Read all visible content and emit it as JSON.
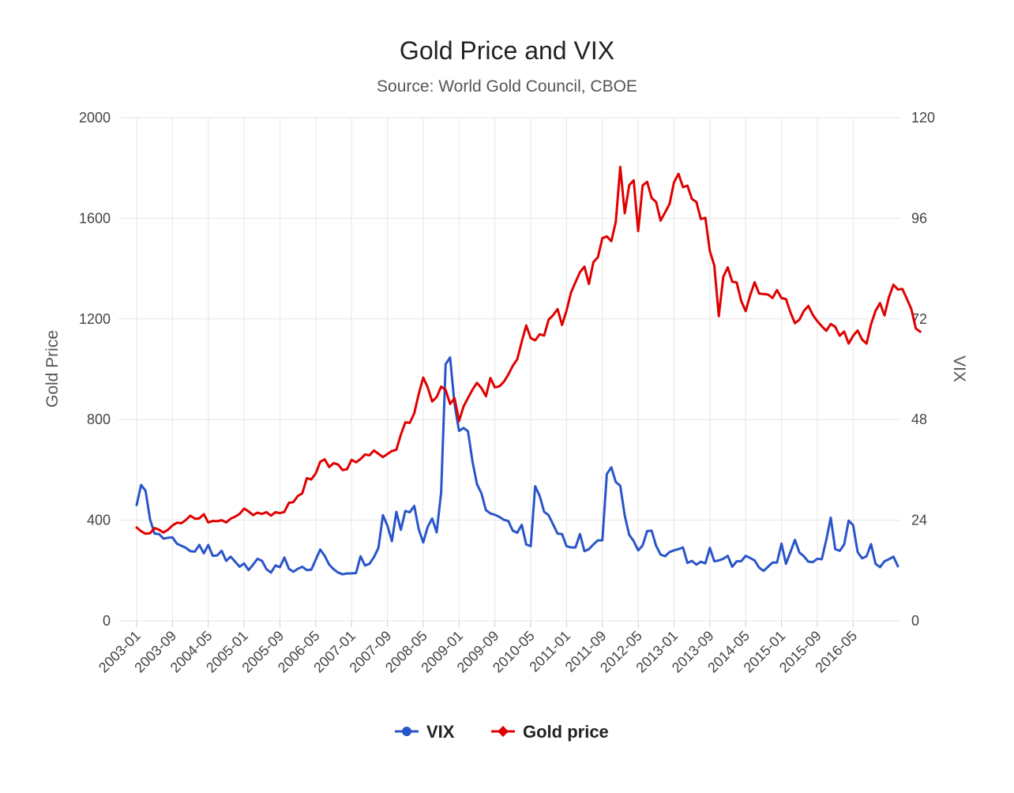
{
  "chart_data": {
    "type": "line",
    "title": "Gold Price and VIX",
    "subtitle": "Source: World Gold Council, CBOE",
    "ylabel": "Gold Price",
    "y2label": "VIX",
    "ylim": [
      0,
      2000
    ],
    "y2lim": [
      0,
      120
    ],
    "yticks": [
      "0",
      "400",
      "800",
      "1200",
      "1600",
      "2000"
    ],
    "y2ticks": [
      "0",
      "24",
      "48",
      "72",
      "96",
      "120"
    ],
    "x_tick_labels": [
      "2003-01",
      "2003-09",
      "2004-05",
      "2005-01",
      "2005-09",
      "2006-05",
      "2007-01",
      "2007-09",
      "2008-05",
      "2009-01",
      "2009-09",
      "2010-05",
      "2011-01",
      "2011-09",
      "2012-05",
      "2013-01",
      "2013-09",
      "2014-05",
      "2015-01",
      "2015-09",
      "2016-05"
    ],
    "x_start": "2003-01",
    "x_end": "2016-12",
    "grid": true,
    "legend_position": "bottom",
    "series": [
      {
        "name": "VIX",
        "axis": "right",
        "color": "#2a55c9",
        "marker": "circle",
        "values": [
          27.6,
          32.4,
          31.0,
          24.2,
          20.8,
          20.7,
          19.6,
          19.8,
          19.9,
          18.4,
          17.9,
          17.4,
          16.6,
          16.5,
          18.1,
          16.1,
          18.1,
          15.5,
          15.6,
          16.7,
          14.3,
          15.3,
          14.1,
          12.9,
          13.7,
          12.1,
          13.4,
          14.8,
          14.3,
          12.3,
          11.5,
          13.2,
          12.8,
          15.1,
          12.4,
          11.7,
          12.4,
          12.9,
          12.1,
          12.2,
          14.6,
          17.0,
          15.5,
          13.4,
          12.3,
          11.5,
          11.1,
          11.3,
          11.3,
          11.4,
          15.4,
          13.2,
          13.6,
          15.2,
          17.4,
          25.2,
          22.7,
          19.0,
          26.0,
          21.7,
          26.2,
          25.9,
          27.4,
          21.8,
          18.7,
          22.4,
          24.4,
          21.1,
          30.6,
          61.2,
          62.8,
          51.6,
          45.3,
          46.0,
          45.2,
          38.0,
          32.6,
          30.4,
          26.4,
          25.6,
          25.3,
          24.8,
          24.1,
          23.8,
          21.5,
          21.0,
          22.9,
          18.2,
          17.8,
          32.1,
          29.8,
          26.0,
          25.2,
          23.0,
          20.8,
          20.7,
          17.8,
          17.5,
          17.5,
          20.7,
          16.6,
          17.1,
          18.2,
          19.2,
          19.2,
          35.0,
          36.6,
          33.1,
          32.2,
          25.1,
          20.5,
          19.0,
          16.8,
          18.0,
          21.4,
          21.5,
          17.9,
          15.8,
          15.4,
          16.4,
          16.8,
          17.1,
          17.5,
          13.8,
          14.3,
          13.4,
          14.1,
          13.7,
          17.4,
          14.2,
          14.4,
          14.8,
          15.5,
          12.9,
          14.2,
          14.2,
          15.5,
          15.0,
          14.4,
          12.7,
          11.9,
          12.9,
          13.9,
          13.9,
          18.4,
          13.6,
          16.4,
          19.3,
          16.3,
          15.4,
          14.1,
          14.0,
          14.8,
          14.7,
          19.3,
          24.6,
          17.1,
          16.7,
          18.2,
          23.9,
          22.8,
          16.4,
          14.9,
          15.4,
          18.3,
          13.6,
          12.8,
          14.2,
          14.7,
          15.3,
          13.0
        ]
      },
      {
        "name": "Gold price",
        "axis": "left",
        "color": "#e00000",
        "marker": "diamond",
        "values": [
          371,
          356,
          346,
          348,
          369,
          362,
          351,
          362,
          379,
          390,
          388,
          401,
          418,
          406,
          407,
          424,
          391,
          397,
          396,
          400,
          391,
          406,
          414,
          425,
          446,
          435,
          420,
          430,
          425,
          432,
          418,
          432,
          428,
          433,
          469,
          472,
          496,
          507,
          567,
          562,
          586,
          632,
          642,
          611,
          627,
          621,
          599,
          603,
          640,
          630,
          643,
          661,
          658,
          677,
          664,
          651,
          663,
          675,
          680,
          740,
          789,
          787,
          825,
          902,
          967,
          928,
          872,
          889,
          931,
          918,
          862,
          885,
          794,
          852,
          886,
          919,
          946,
          925,
          893,
          965,
          928,
          932,
          950,
          979,
          1014,
          1040,
          1110,
          1174,
          1124,
          1115,
          1139,
          1134,
          1197,
          1215,
          1239,
          1176,
          1233,
          1305,
          1346,
          1386,
          1408,
          1339,
          1426,
          1445,
          1521,
          1528,
          1509,
          1586,
          1804,
          1620,
          1732,
          1751,
          1549,
          1731,
          1745,
          1681,
          1665,
          1591,
          1623,
          1657,
          1743,
          1777,
          1724,
          1730,
          1677,
          1665,
          1597,
          1602,
          1470,
          1412,
          1211,
          1367,
          1405,
          1348,
          1345,
          1272,
          1231,
          1294,
          1346,
          1301,
          1299,
          1297,
          1283,
          1315,
          1283,
          1279,
          1226,
          1183,
          1197,
          1232,
          1252,
          1216,
          1191,
          1171,
          1153,
          1180,
          1169,
          1133,
          1150,
          1102,
          1133,
          1154,
          1118,
          1102,
          1179,
          1232,
          1263,
          1214,
          1287,
          1336,
          1317,
          1319,
          1280,
          1239,
          1162,
          1149
        ]
      }
    ]
  }
}
